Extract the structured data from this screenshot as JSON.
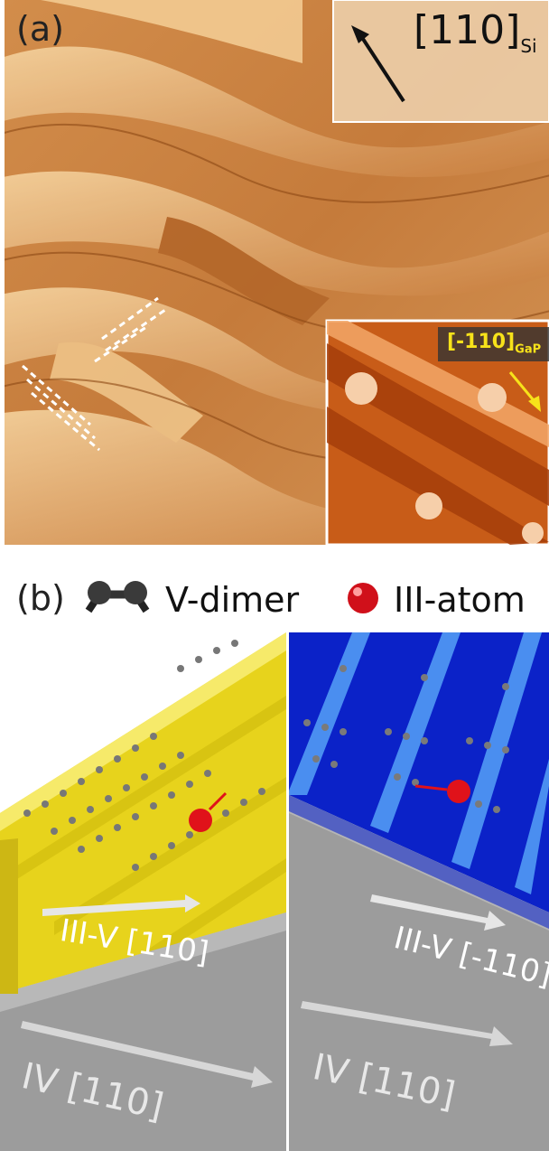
{
  "panel_a": {
    "label": "(a)",
    "inset_direction": {
      "main": "[110]",
      "sub": "Si"
    },
    "zoom_direction": {
      "main": "[-110]",
      "sub": "GaP"
    }
  },
  "panel_b": {
    "label": "(b)",
    "legend": {
      "dimer": "V-dimer",
      "atom": "III-atom"
    },
    "left": {
      "top_direction": "III-V [110]",
      "bottom_direction": "IV [110]"
    },
    "right": {
      "top_direction": "III-V [-110]",
      "bottom_direction": "IV [110]"
    }
  },
  "colors": {
    "stm_light": "#f2c98e",
    "stm_dark": "#a85a1e",
    "yellow_face": "#e7d31c",
    "blue_face": "#0b22c8",
    "gray_base": "#9c9c9c",
    "atom_red": "#e0121a"
  }
}
